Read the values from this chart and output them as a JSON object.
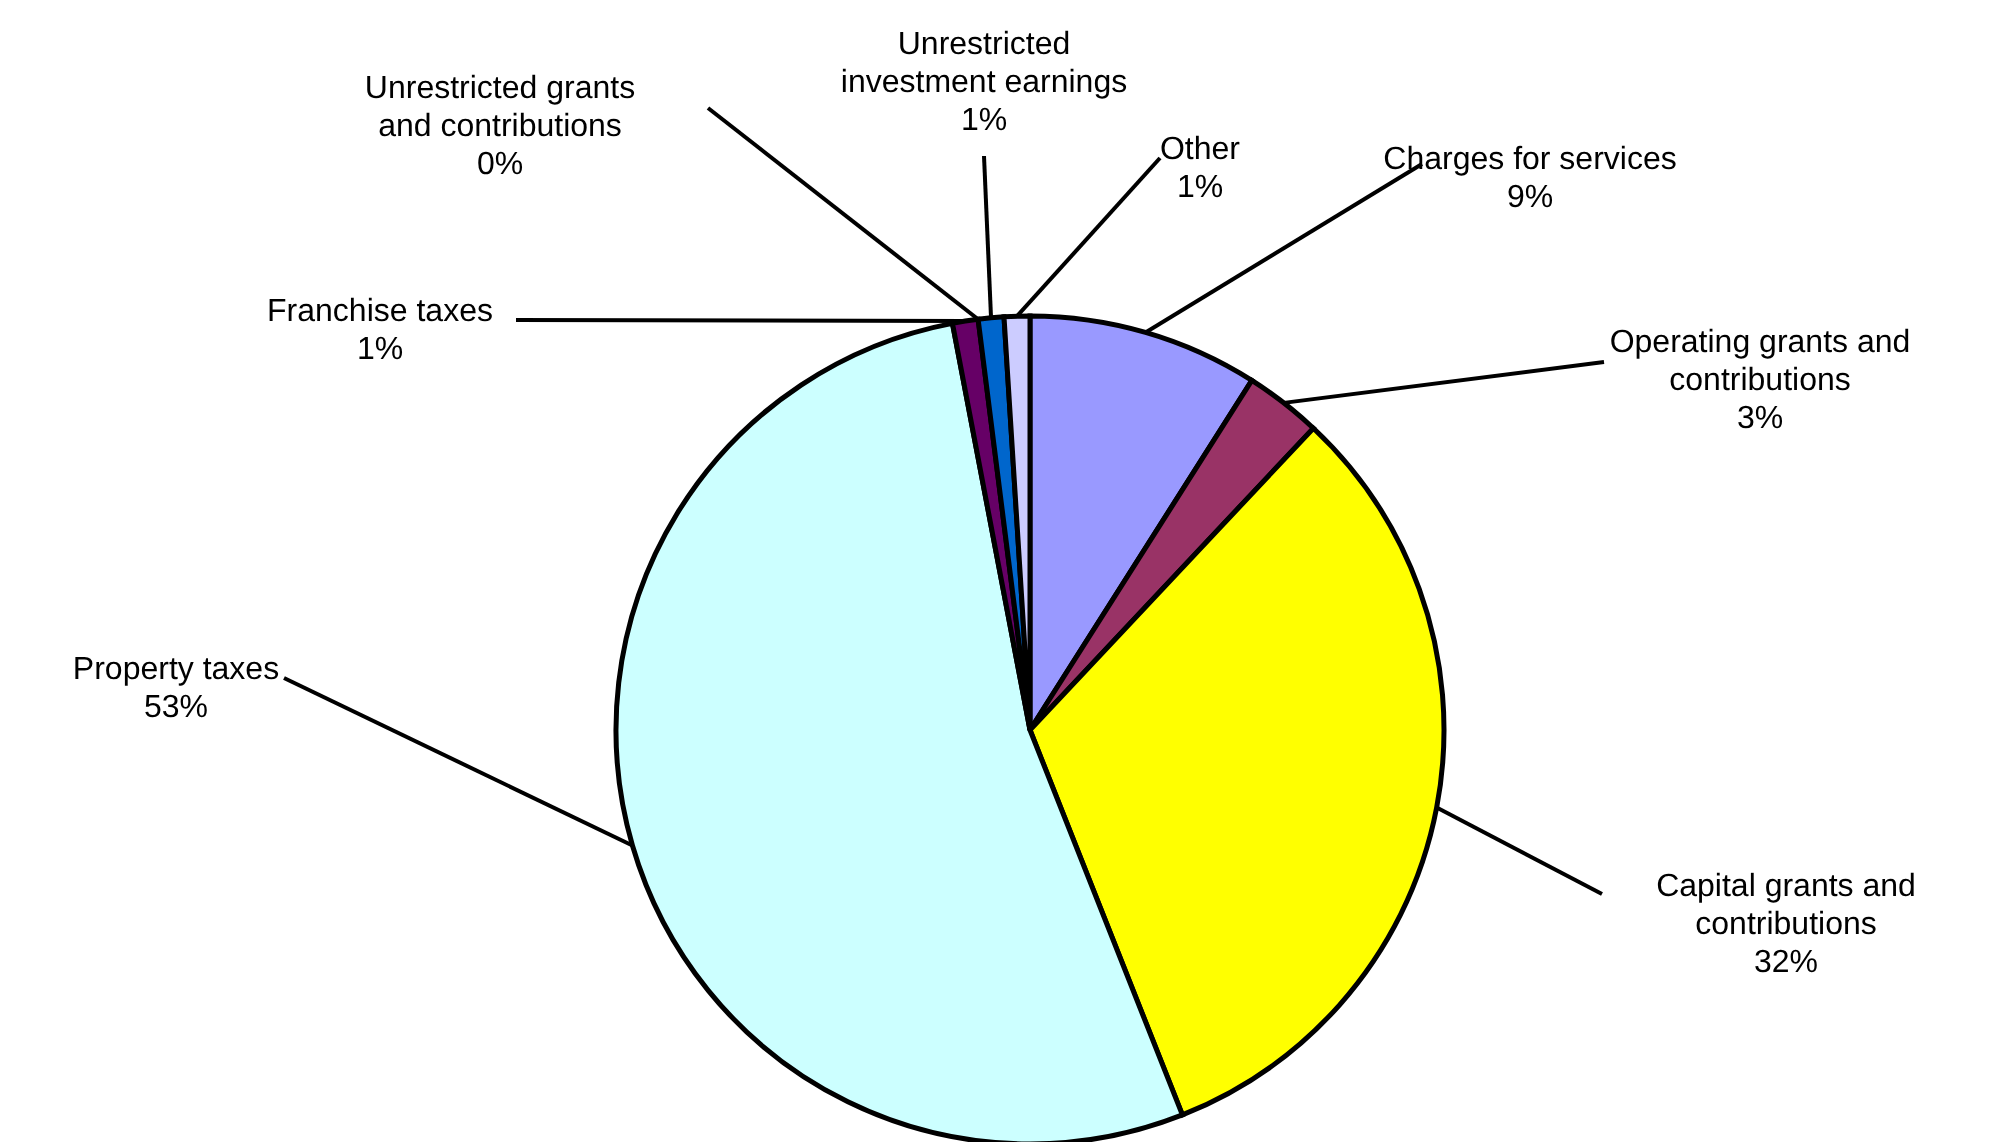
{
  "chart_data": {
    "type": "pie",
    "categories": [
      "Charges for services",
      "Operating grants and contributions",
      "Capital grants and contributions",
      "Property taxes",
      "Franchise taxes",
      "Unrestricted grants and contributions",
      "Unrestricted investment earnings",
      "Other"
    ],
    "values": [
      9,
      3,
      32,
      53,
      1,
      0,
      1,
      1
    ],
    "value_labels": [
      "9%",
      "3%",
      "32%",
      "53%",
      "1%",
      "0%",
      "1%",
      "1%"
    ],
    "colors": [
      "#9999ff",
      "#993366",
      "#ffff00",
      "#ccffff",
      "#660066",
      "#ff8080",
      "#0066cc",
      "#ccccff"
    ],
    "legend": false
  }
}
